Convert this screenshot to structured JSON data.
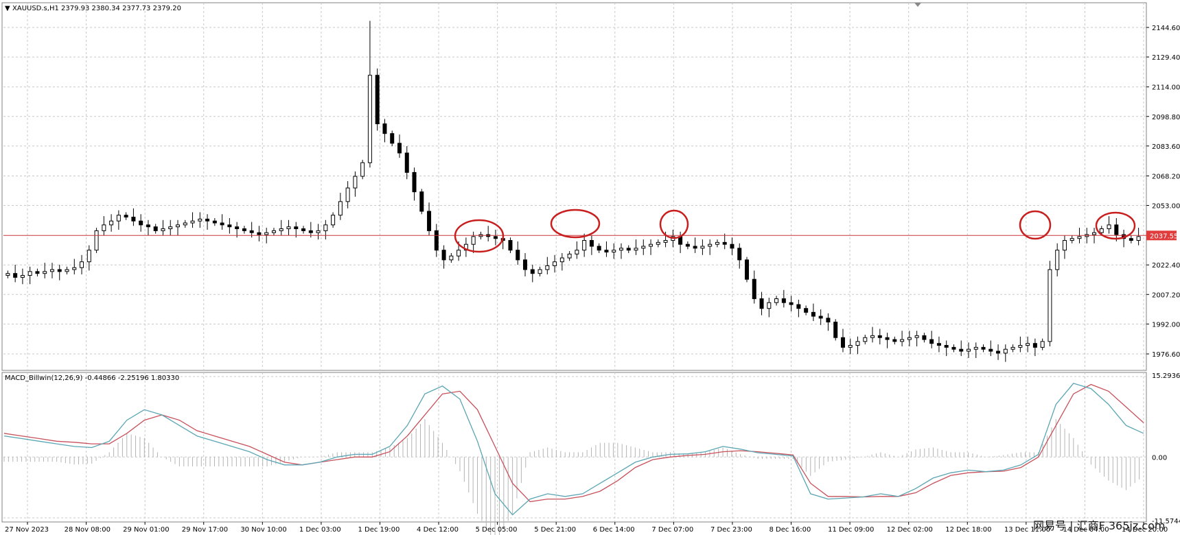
{
  "header": {
    "price_info": "XAUUSD.s,H1  2379.93 2380.34 2377.73 2379.20",
    "macd_info": "MACD_Billwin(12,26,9) -0.44866 -2.25196 1.80330"
  },
  "watermark": {
    "text": "网易号 | 汇商F 365jz.com"
  },
  "colors": {
    "up_candle": "#ffffff",
    "down_candle": "#000000",
    "grid": "#c8c8c8",
    "price_line": "#c8323c",
    "price_tag_bg": "#e03c3c",
    "macd_line": "#5aa5b4",
    "signal_line": "#c8505a",
    "circle": "#c81e1e"
  },
  "chart_data": [
    {
      "type": "candlestick",
      "symbol": "XAUUSD.s",
      "timeframe": "H1",
      "current_price": "2037.55",
      "ylim": [
        1964,
        2156
      ],
      "y_ticks": [
        "2144.60",
        "2129.40",
        "2114.00",
        "2098.80",
        "2083.60",
        "2068.20",
        "2053.00",
        "2037.55",
        "2022.40",
        "2007.20",
        "1992.00",
        "1976.60"
      ],
      "x_ticks": [
        "27 Nov 2023",
        "28 Nov 08:00",
        "29 Nov 01:00",
        "29 Nov 17:00",
        "30 Nov 10:00",
        "1 Dec 03:00",
        "1 Dec 19:00",
        "4 Dec 12:00",
        "5 Dec 05:00",
        "5 Dec 21:00",
        "6 Dec 14:00",
        "7 Dec 07:00",
        "7 Dec 23:00",
        "8 Dec 16:00",
        "11 Dec 09:00",
        "12 Dec 02:00",
        "12 Dec 18:00",
        "13 Dec 11:00",
        "14 Dec 04:00",
        "14 Dec 20:00"
      ],
      "close_path": [
        2018,
        2016,
        2017,
        2019,
        2018,
        2019,
        2020,
        2019,
        2020,
        2021,
        2024,
        2030,
        2040,
        2043,
        2045,
        2048,
        2047,
        2045,
        2043,
        2042,
        2040,
        2041,
        2042,
        2043,
        2044,
        2045,
        2046,
        2045,
        2044,
        2043,
        2042,
        2041,
        2040,
        2039,
        2038,
        2039,
        2040,
        2041,
        2042,
        2041,
        2040,
        2039,
        2040,
        2043,
        2048,
        2055,
        2062,
        2068,
        2075,
        2120,
        2095,
        2090,
        2085,
        2080,
        2070,
        2060,
        2050,
        2040,
        2030,
        2025,
        2027,
        2030,
        2033,
        2037,
        2038,
        2037,
        2036,
        2035,
        2030,
        2025,
        2020,
        2018,
        2020,
        2022,
        2024,
        2026,
        2028,
        2030,
        2035,
        2032,
        2030,
        2029,
        2030,
        2031,
        2030,
        2031,
        2032,
        2033,
        2034,
        2035,
        2037,
        2033,
        2032,
        2031,
        2032,
        2033,
        2034,
        2033,
        2031,
        2025,
        2015,
        2005,
        2000,
        2003,
        2005,
        2003,
        2002,
        2000,
        1998,
        1996,
        1995,
        1993,
        1985,
        1980,
        1981,
        1983,
        1985,
        1986,
        1985,
        1984,
        1983,
        1984,
        1985,
        1986,
        1984,
        1982,
        1981,
        1980,
        1979,
        1978,
        1979,
        1980,
        1979,
        1978,
        1977,
        1979,
        1980,
        1981,
        1982,
        1980,
        1983,
        2020,
        2030,
        2035,
        2036,
        2037,
        2038,
        2039,
        2041,
        2043,
        2038,
        2036,
        2035,
        2037
      ],
      "rejection_highs_circled": [
        "5 Dec 05:00",
        "5 Dec 21:00",
        "7 Dec 07:00",
        "13 Dec 11:00",
        "14 Dec 04:00"
      ]
    },
    {
      "type": "line",
      "title": "MACD_Billwin(12,26,9)",
      "ylim": [
        -11.57443,
        15.29369
      ],
      "y_ticks": [
        "15.29369",
        "0.00",
        "-11.57443"
      ],
      "series": [
        {
          "role": "macd_line",
          "values": [
            4.0,
            3.5,
            3.0,
            2.5,
            2.0,
            1.8,
            3.0,
            7.0,
            9.0,
            8.0,
            6.0,
            4.0,
            3.0,
            2.0,
            1.0,
            -0.5,
            -1.5,
            -1.5,
            -1.0,
            0.0,
            0.5,
            0.5,
            2.0,
            6.0,
            12.0,
            13.5,
            11.0,
            3.0,
            -7.0,
            -11.0,
            -8.0,
            -7.0,
            -7.5,
            -7.0,
            -5.0,
            -3.0,
            -1.0,
            0.0,
            0.5,
            0.6,
            1.0,
            2.0,
            1.5,
            0.8,
            0.5,
            0.2,
            -7.0,
            -8.0,
            -7.8,
            -7.6,
            -7.0,
            -7.5,
            -6.0,
            -4.0,
            -3.0,
            -2.5,
            -2.8,
            -2.5,
            -1.5,
            0.5,
            10.0,
            14.0,
            13.0,
            10.0,
            6.0,
            4.5
          ]
        },
        {
          "role": "signal_line",
          "values": [
            4.5,
            4.0,
            3.5,
            3.0,
            2.8,
            2.5,
            2.5,
            4.5,
            7.0,
            8.0,
            7.0,
            5.0,
            4.0,
            3.0,
            2.0,
            0.5,
            -1.0,
            -1.5,
            -1.0,
            -0.5,
            0.0,
            0.0,
            1.0,
            4.0,
            8.0,
            12.0,
            12.5,
            9.0,
            2.0,
            -5.0,
            -8.5,
            -8.0,
            -8.0,
            -7.5,
            -6.5,
            -4.5,
            -2.0,
            -0.5,
            0.0,
            0.3,
            0.5,
            1.0,
            1.2,
            1.0,
            0.7,
            0.4,
            -5.0,
            -7.5,
            -7.5,
            -7.6,
            -7.5,
            -7.5,
            -6.8,
            -5.0,
            -3.5,
            -3.0,
            -2.8,
            -2.7,
            -2.0,
            0.0,
            6.0,
            12.0,
            13.8,
            12.5,
            9.5,
            6.5
          ]
        }
      ]
    }
  ]
}
